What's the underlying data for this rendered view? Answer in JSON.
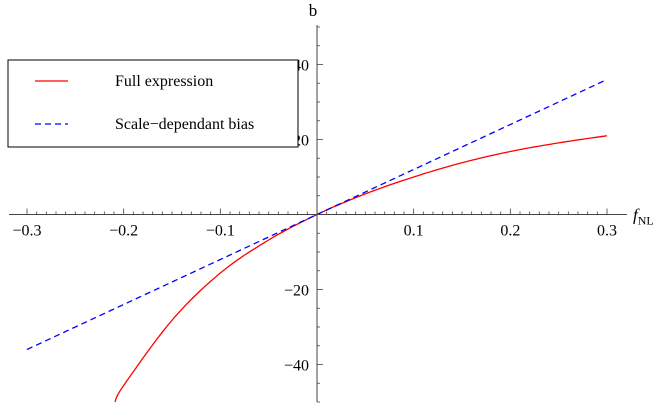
{
  "chart_data": {
    "type": "line",
    "xlabel": "f",
    "xlabel_sub": "NL",
    "ylabel": "b",
    "xlim": [
      -0.3,
      0.3
    ],
    "ylim": [
      -50,
      50
    ],
    "x_ticks": [
      -0.3,
      -0.2,
      -0.1,
      0.1,
      0.2,
      0.3
    ],
    "x_tick_labels": [
      "−0.3",
      "−0.2",
      "−0.1",
      "0.1",
      "0.2",
      "0.3"
    ],
    "y_ticks": [
      -40,
      -20,
      20,
      40
    ],
    "y_tick_labels": [
      "−40",
      "−20",
      "20",
      "40"
    ],
    "grid": false,
    "legend_position": "top-left",
    "series": [
      {
        "name": "Full expression",
        "color": "#ff0000",
        "style": "solid",
        "x": [
          -0.209,
          -0.2,
          -0.15,
          -0.1,
          -0.05,
          0.0,
          0.05,
          0.1,
          0.15,
          0.2,
          0.25,
          0.3
        ],
        "y": [
          -50.0,
          -45.6,
          -28.2,
          -15.6,
          -6.8,
          0.0,
          5.5,
          10.0,
          13.8,
          16.8,
          19.1,
          21.0
        ]
      },
      {
        "name": "Scale−dependant bias",
        "color": "#0000ff",
        "style": "dashed",
        "x": [
          -0.3,
          0.3
        ],
        "y": [
          -36.0,
          36.0
        ]
      }
    ]
  }
}
